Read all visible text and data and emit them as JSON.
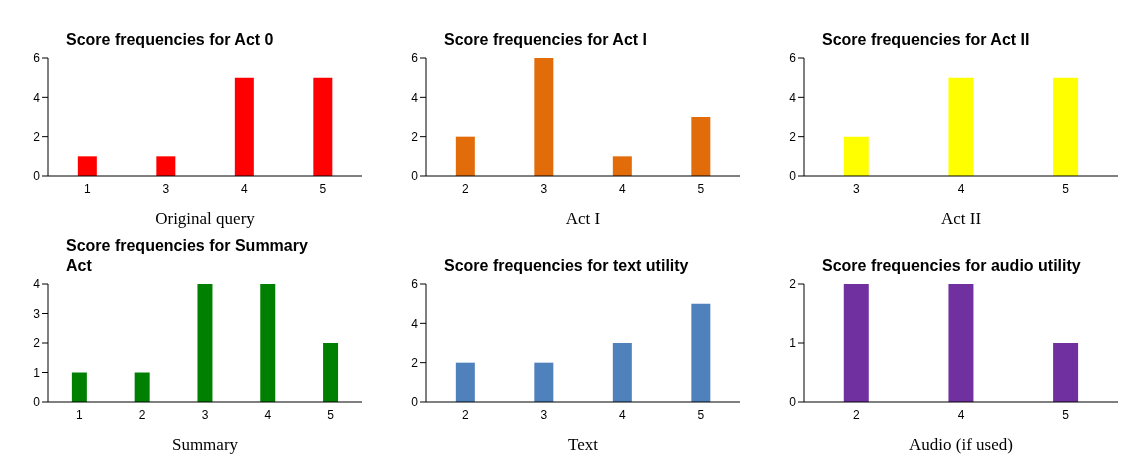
{
  "chart_data": [
    {
      "type": "bar",
      "title": "Score frequencies for Act 0",
      "xlabel": "Original query",
      "categories": [
        "1",
        "3",
        "4",
        "5"
      ],
      "values": [
        1,
        1,
        5,
        5
      ],
      "color": "#ff0000",
      "ylim": [
        0,
        6
      ],
      "yticks": [
        0,
        2,
        4,
        6
      ],
      "grid": false
    },
    {
      "type": "bar",
      "title": "Score frequencies for Act I",
      "xlabel": "Act I",
      "categories": [
        "2",
        "3",
        "4",
        "5"
      ],
      "values": [
        2,
        6,
        1,
        3
      ],
      "color": "#e36c0a",
      "ylim": [
        0,
        6
      ],
      "yticks": [
        0,
        2,
        4,
        6
      ],
      "grid": false
    },
    {
      "type": "bar",
      "title": "Score frequencies for Act II",
      "xlabel": "Act II",
      "categories": [
        "3",
        "4",
        "5"
      ],
      "values": [
        2,
        5,
        5
      ],
      "color": "#ffff00",
      "ylim": [
        0,
        6
      ],
      "yticks": [
        0,
        2,
        4,
        6
      ],
      "grid": false
    },
    {
      "type": "bar",
      "title": "Score frequencies for Summary Act",
      "xlabel": "Summary",
      "categories": [
        "1",
        "2",
        "3",
        "4",
        "5"
      ],
      "values": [
        1,
        1,
        4,
        4,
        2
      ],
      "color": "#008000",
      "ylim": [
        0,
        4
      ],
      "yticks": [
        0,
        1,
        2,
        3,
        4
      ],
      "grid": false
    },
    {
      "type": "bar",
      "title": "Score frequencies for text utility",
      "xlabel": "Text",
      "categories": [
        "2",
        "3",
        "4",
        "5"
      ],
      "values": [
        2,
        2,
        3,
        5
      ],
      "color": "#4f81bd",
      "ylim": [
        0,
        6
      ],
      "yticks": [
        0,
        2,
        4,
        6
      ],
      "grid": false
    },
    {
      "type": "bar",
      "title": "Score frequencies for audio utility",
      "xlabel": "Audio (if used)",
      "categories": [
        "2",
        "4",
        "5"
      ],
      "values": [
        2,
        2,
        1
      ],
      "color": "#7030a0",
      "ylim": [
        0,
        2
      ],
      "yticks": [
        0,
        1,
        2
      ],
      "grid": false
    }
  ]
}
